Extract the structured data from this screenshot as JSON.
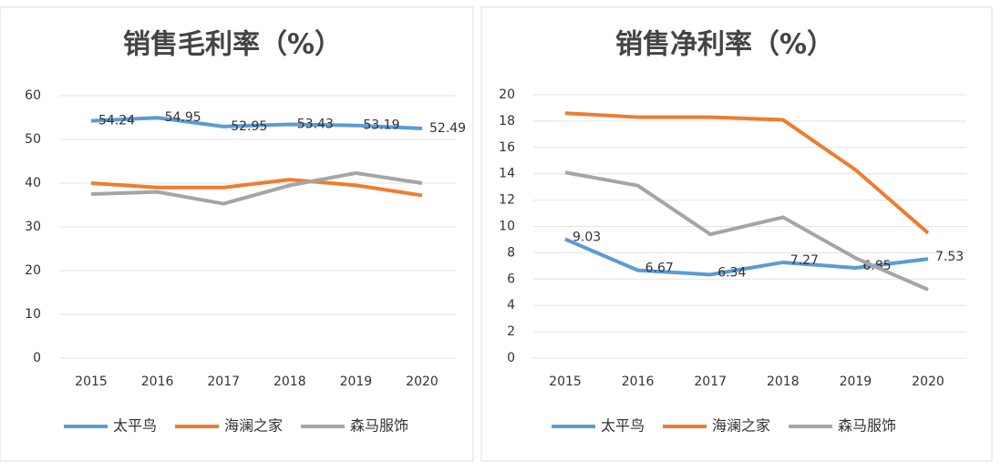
{
  "chart_data": [
    {
      "type": "line",
      "title": "销售毛利率（%）",
      "categories": [
        "2015",
        "2016",
        "2017",
        "2018",
        "2019",
        "2020"
      ],
      "ylim": [
        0,
        60
      ],
      "yticks": [
        0,
        10,
        20,
        30,
        40,
        50,
        60
      ],
      "grid": true,
      "series": [
        {
          "name": "太平鸟",
          "color": "#5b9bd5",
          "values": [
            54.24,
            54.95,
            52.95,
            53.43,
            53.19,
            52.49
          ],
          "labels": true
        },
        {
          "name": "海澜之家",
          "color": "#ed7d31",
          "values": [
            40.0,
            39.0,
            39.0,
            40.8,
            39.5,
            37.2
          ]
        },
        {
          "name": "森马服饰",
          "color": "#a5a5a5",
          "values": [
            37.5,
            38.0,
            35.3,
            39.5,
            42.3,
            40.0
          ]
        }
      ]
    },
    {
      "type": "line",
      "title": "销售净利率（%）",
      "categories": [
        "2015",
        "2016",
        "2017",
        "2018",
        "2019",
        "2020"
      ],
      "ylim": [
        0,
        20
      ],
      "yticks": [
        0,
        2,
        4,
        6,
        8,
        10,
        12,
        14,
        16,
        18,
        20
      ],
      "grid": true,
      "series": [
        {
          "name": "太平鸟",
          "color": "#5b9bd5",
          "values": [
            9.03,
            6.67,
            6.34,
            7.27,
            6.85,
            7.53
          ],
          "labels": true
        },
        {
          "name": "海澜之家",
          "color": "#ed7d31",
          "values": [
            18.6,
            18.3,
            18.3,
            18.1,
            14.3,
            9.5
          ]
        },
        {
          "name": "森马服饰",
          "color": "#a5a5a5",
          "values": [
            14.1,
            13.1,
            9.4,
            10.7,
            7.6,
            5.2
          ]
        }
      ]
    }
  ]
}
